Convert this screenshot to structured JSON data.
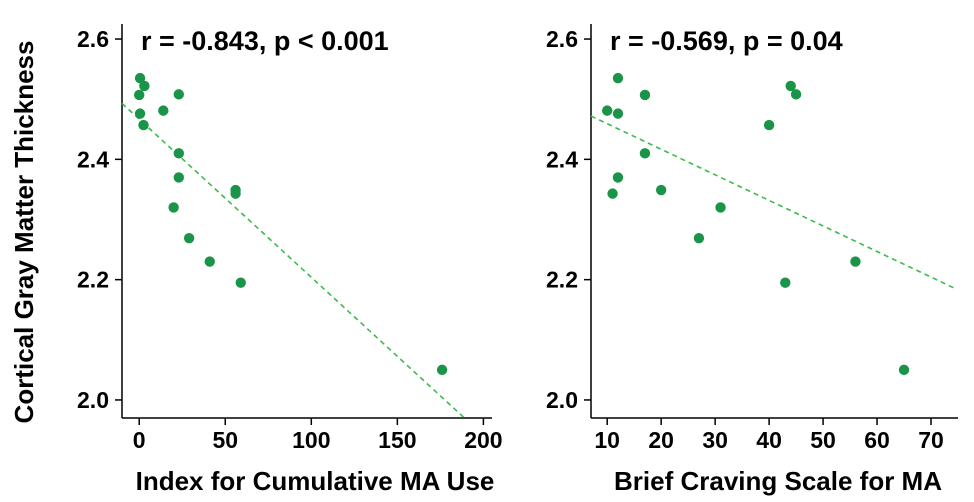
{
  "figure": {
    "shared_ylabel": "Cortical Gray Matter Thickness"
  },
  "colors": {
    "points": "#1a9448",
    "fit_line": "#3cba4e",
    "axes": "#000000"
  },
  "chart_data": [
    {
      "type": "scatter",
      "title": "",
      "annotation": "r = -0.843, p < 0.001",
      "xlabel": "Index for Cumulative MA Use",
      "ylabel": "Cortical Gray Matter Thickness",
      "xlim": [
        -10,
        205
      ],
      "ylim": [
        1.97,
        2.625
      ],
      "xticks": [
        0,
        50,
        100,
        150,
        200
      ],
      "yticks": [
        2.0,
        2.2,
        2.4,
        2.6
      ],
      "yticklabels": [
        "2.0",
        "2.2",
        "2.4",
        "2.6"
      ],
      "grid": false,
      "fit_line": {
        "style": "dashed",
        "x": [
          -10,
          189
        ],
        "y": [
          2.493,
          1.97
        ]
      },
      "points": [
        {
          "x": 0.5,
          "y": 2.535
        },
        {
          "x": 3,
          "y": 2.522
        },
        {
          "x": 0,
          "y": 2.507
        },
        {
          "x": 0.5,
          "y": 2.476
        },
        {
          "x": 2.5,
          "y": 2.457
        },
        {
          "x": 14,
          "y": 2.481
        },
        {
          "x": 23,
          "y": 2.508
        },
        {
          "x": 23,
          "y": 2.41
        },
        {
          "x": 23,
          "y": 2.37
        },
        {
          "x": 20,
          "y": 2.32
        },
        {
          "x": 29,
          "y": 2.269
        },
        {
          "x": 41,
          "y": 2.23
        },
        {
          "x": 56,
          "y": 2.349
        },
        {
          "x": 56,
          "y": 2.343
        },
        {
          "x": 59,
          "y": 2.195
        },
        {
          "x": 176,
          "y": 2.05
        }
      ]
    },
    {
      "type": "scatter",
      "title": "",
      "annotation": "r = -0.569, p = 0.04",
      "xlabel": "Brief Craving Scale for MA",
      "ylabel": "",
      "xlim": [
        7,
        75
      ],
      "ylim": [
        1.97,
        2.625
      ],
      "xticks": [
        10,
        20,
        30,
        40,
        50,
        60,
        70
      ],
      "yticks": [
        2.0,
        2.2,
        2.4,
        2.6
      ],
      "yticklabels": [
        "2.0",
        "2.2",
        "2.4",
        "2.6"
      ],
      "grid": false,
      "fit_line": {
        "style": "dashed",
        "x": [
          7,
          74.3
        ],
        "y": [
          2.472,
          2.186
        ]
      },
      "points": [
        {
          "x": 10,
          "y": 2.481
        },
        {
          "x": 12,
          "y": 2.535
        },
        {
          "x": 12,
          "y": 2.476
        },
        {
          "x": 11,
          "y": 2.343
        },
        {
          "x": 12,
          "y": 2.37
        },
        {
          "x": 17,
          "y": 2.507
        },
        {
          "x": 17,
          "y": 2.41
        },
        {
          "x": 20,
          "y": 2.349
        },
        {
          "x": 27,
          "y": 2.269
        },
        {
          "x": 31,
          "y": 2.32
        },
        {
          "x": 40,
          "y": 2.457
        },
        {
          "x": 44,
          "y": 2.522
        },
        {
          "x": 45,
          "y": 2.508
        },
        {
          "x": 43,
          "y": 2.195
        },
        {
          "x": 56,
          "y": 2.23
        },
        {
          "x": 65,
          "y": 2.05
        }
      ]
    }
  ]
}
